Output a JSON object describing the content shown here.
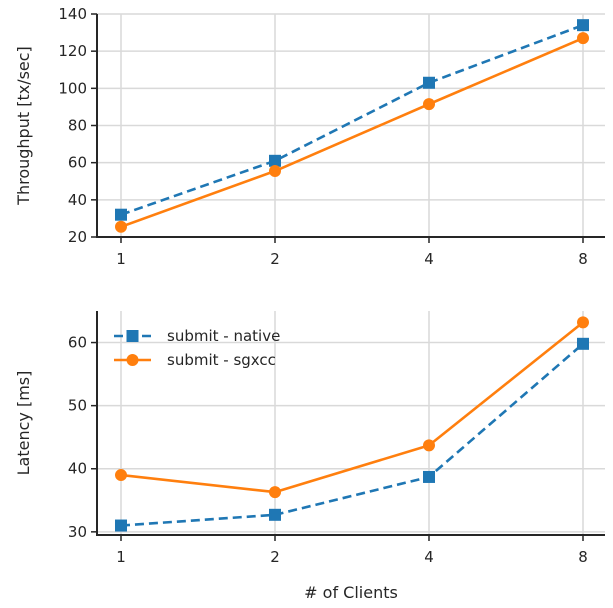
{
  "chart_data": [
    {
      "type": "line",
      "x": [
        "1",
        "2",
        "4",
        "8"
      ],
      "ylabel": "Throughput [tx/sec]",
      "xlabel": "",
      "ylim": [
        20,
        140
      ],
      "yticks": [
        20,
        40,
        60,
        80,
        100,
        120,
        140
      ],
      "grid": true,
      "legend": "none",
      "series": [
        {
          "name": "submit - native",
          "values": [
            32,
            61,
            103,
            134
          ],
          "color": "#1f77b4",
          "linestyle": "dashed",
          "marker": "square"
        },
        {
          "name": "submit - sgxcc",
          "values": [
            25.5,
            55.5,
            91.5,
            127
          ],
          "color": "#ff7f0e",
          "linestyle": "solid",
          "marker": "circle"
        }
      ]
    },
    {
      "type": "line",
      "x": [
        "1",
        "2",
        "4",
        "8"
      ],
      "ylabel": "Latency [ms]",
      "xlabel": "# of Clients",
      "ylim": [
        29.5,
        65
      ],
      "yticks": [
        30,
        40,
        50,
        60
      ],
      "grid": true,
      "legend": "top-left",
      "series": [
        {
          "name": "submit - native",
          "values": [
            31.0,
            32.7,
            38.7,
            59.8
          ],
          "color": "#1f77b4",
          "linestyle": "dashed",
          "marker": "square"
        },
        {
          "name": "submit - sgxcc",
          "values": [
            39.0,
            36.3,
            43.7,
            63.2
          ],
          "color": "#ff7f0e",
          "linestyle": "solid",
          "marker": "circle"
        }
      ]
    }
  ]
}
